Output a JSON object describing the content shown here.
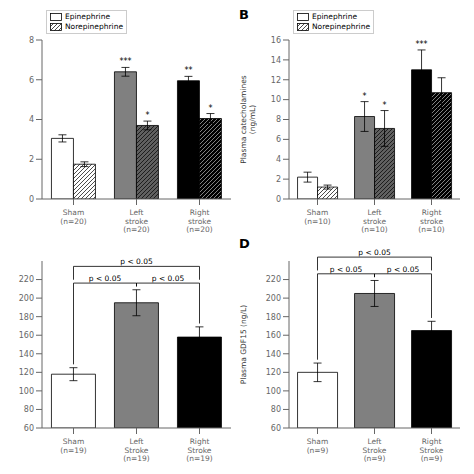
{
  "chart_data": [
    {
      "type": "bar",
      "categories": [
        "Sham\n(n=20)",
        "Left\nstroke\n(n=20)",
        "Right\nstroke\n(n=20)"
      ],
      "series": [
        {
          "name": "Epinephrine",
          "colors": [
            "white",
            "#808080",
            "black"
          ],
          "values": [
            3.05,
            6.4,
            5.95
          ],
          "errors": [
            0.18,
            0.22,
            0.22
          ],
          "annotations": [
            null,
            "***",
            "**"
          ]
        },
        {
          "name": "Norepinephrine",
          "colors": [
            "white",
            "#606060",
            "black"
          ],
          "values": [
            1.75,
            3.7,
            4.05
          ],
          "errors": [
            0.12,
            0.22,
            0.25
          ],
          "annotations": [
            null,
            "*",
            "*"
          ]
        }
      ],
      "ylim": [
        0,
        8
      ],
      "yticks": [
        0,
        2,
        4,
        6,
        8
      ],
      "legend": "upper left",
      "grid": false
    },
    {
      "type": "bar",
      "title": "B",
      "ylabel": "Plasma catecholamines\n(ng/mL)",
      "categories": [
        "Sham\n(n=10)",
        "Left\nstroke\n(n=10)",
        "Right\nstroke\n(n=10)"
      ],
      "series": [
        {
          "name": "Epinephrine",
          "colors": [
            "white",
            "#808080",
            "black"
          ],
          "values": [
            2.2,
            8.3,
            13.0
          ],
          "errors": [
            0.5,
            1.5,
            2.0
          ],
          "annotations": [
            null,
            "*",
            "***"
          ]
        },
        {
          "name": "Norepinephrine",
          "colors": [
            "white",
            "#606060",
            "black"
          ],
          "values": [
            1.2,
            7.1,
            10.7
          ],
          "errors": [
            0.2,
            1.8,
            1.5
          ],
          "annotations": [
            null,
            "*",
            null
          ]
        }
      ],
      "ylim": [
        0,
        16
      ],
      "yticks": [
        0,
        2,
        4,
        6,
        8,
        10,
        12,
        14,
        16
      ],
      "legend": "upper left",
      "grid": false
    },
    {
      "type": "bar",
      "categories": [
        "Sham\n(n=19)",
        "Left\nStroke\n(n=19)",
        "Right\nStroke\n(n=19)"
      ],
      "values": [
        118,
        195,
        158
      ],
      "errors": [
        7,
        14,
        11
      ],
      "colors": [
        "white",
        "#808080",
        "black"
      ],
      "ylim": [
        60,
        240
      ],
      "yticks": [
        60,
        80,
        100,
        120,
        140,
        160,
        180,
        200,
        220
      ],
      "grid": false,
      "annotations": [
        {
          "text": "p < 0.05",
          "between": [
            "Sham\n(n=19)",
            "Left\nStroke\n(n=19)"
          ]
        },
        {
          "text": "p < 0.05",
          "between": [
            "Sham\n(n=19)",
            "Right\nStroke\n(n=19)"
          ]
        },
        {
          "text": "p < 0.05",
          "between": [
            "Left\nStroke\n(n=19)",
            "Right\nStroke\n(n=19)"
          ]
        }
      ]
    },
    {
      "type": "bar",
      "title": "D",
      "ylabel": "Plasma GDF15 (ng/L)",
      "categories": [
        "Sham\n(n=9)",
        "Left\nStroke\n(n=9)",
        "Right\nStroke\n(n=9)"
      ],
      "values": [
        120,
        205,
        165
      ],
      "errors": [
        10,
        14,
        10
      ],
      "colors": [
        "white",
        "#808080",
        "black"
      ],
      "ylim": [
        60,
        240
      ],
      "yticks": [
        60,
        80,
        100,
        120,
        140,
        160,
        180,
        200,
        220
      ],
      "grid": false,
      "annotations": [
        {
          "text": "p < 0.05",
          "between": [
            "Sham\n(n=9)",
            "Left\nStroke\n(n=9)"
          ]
        },
        {
          "text": "p < 0.05",
          "between": [
            "Sham\n(n=9)",
            "Right\nStroke\n(n=9)"
          ]
        },
        {
          "text": "p < 0.05",
          "between": [
            "Left\nStroke\n(n=9)",
            "Right\nStroke\n(n=9)"
          ]
        }
      ]
    }
  ]
}
